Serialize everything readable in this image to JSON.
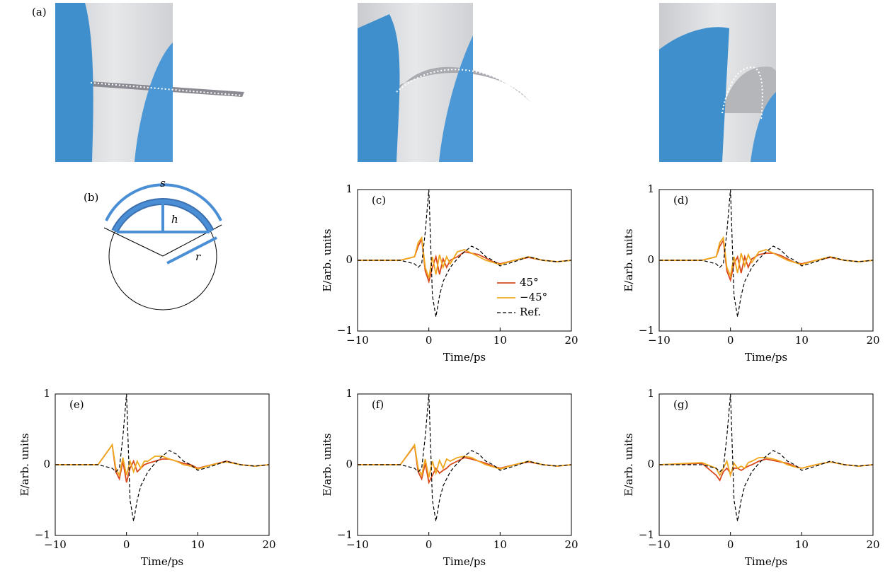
{
  "panels": {
    "a": "(a)",
    "b": "(b)"
  },
  "diagram": {
    "s": "s",
    "h": "h",
    "r": "r"
  },
  "chart_data": [
    {
      "type": "line",
      "label": "(c)",
      "xlabel": "Time/ps",
      "ylabel": "E/arb. units",
      "x": [
        -10,
        -4,
        -2,
        -1.5,
        -1,
        -0.5,
        0,
        0.5,
        1,
        1.5,
        2,
        2.5,
        3,
        4,
        5,
        6,
        7,
        8,
        9,
        10,
        12,
        14,
        16,
        18,
        20
      ],
      "xlim": [
        -10,
        20
      ],
      "ylim": [
        -1,
        1
      ],
      "xticks": [
        {
          "value": -10,
          "label": "−10"
        },
        0,
        10,
        20
      ],
      "yticks": [
        {
          "value": -1,
          "label": "−1"
        },
        0,
        1
      ],
      "legend": "lower right",
      "series": [
        {
          "name": "45°",
          "color": "#d9481c",
          "values": [
            0,
            0,
            0.05,
            0.2,
            0.3,
            -0.15,
            -0.3,
            -0.1,
            0.05,
            -0.2,
            0.02,
            -0.1,
            0,
            0.05,
            0.12,
            0.1,
            0.08,
            0.03,
            -0.02,
            -0.05,
            0,
            0.04,
            0,
            -0.02,
            0
          ]
        },
        {
          "name": "−45°",
          "color": "#f0a81e",
          "values": [
            0,
            0,
            0.05,
            0.25,
            0.32,
            -0.1,
            -0.25,
            0.05,
            -0.2,
            0.08,
            -0.1,
            0.05,
            -0.05,
            0.12,
            0.15,
            0.1,
            0.05,
            0,
            -0.03,
            -0.06,
            0,
            0.05,
            0,
            -0.02,
            0
          ]
        },
        {
          "name": "Ref.",
          "color": "#000000",
          "dash": true,
          "values": [
            0,
            0,
            -0.05,
            -0.1,
            -0.05,
            0.4,
            1,
            -0.5,
            -0.8,
            -0.5,
            -0.3,
            -0.2,
            -0.1,
            0.02,
            0.12,
            0.2,
            0.15,
            0.05,
            0,
            -0.08,
            -0.02,
            0.05,
            0,
            -0.02,
            0
          ]
        }
      ]
    },
    {
      "type": "line",
      "label": "(d)",
      "xlabel": "Time/ps",
      "ylabel": "E/arb. units",
      "x": [
        -10,
        -4,
        -2,
        -1.5,
        -1,
        -0.5,
        0,
        0.5,
        1,
        1.5,
        2,
        2.5,
        3,
        4,
        5,
        6,
        7,
        8,
        9,
        10,
        12,
        14,
        16,
        18,
        20
      ],
      "xlim": [
        -10,
        20
      ],
      "ylim": [
        -1,
        1
      ],
      "xticks": [
        {
          "value": -10,
          "label": "−10"
        },
        0,
        10,
        20
      ],
      "yticks": [
        {
          "value": -1,
          "label": "−1"
        },
        0,
        1
      ],
      "series": [
        {
          "color": "#d9481c",
          "values": [
            0,
            0,
            0.05,
            0.2,
            0.28,
            -0.15,
            -0.28,
            -0.05,
            0.05,
            -0.18,
            0.05,
            -0.1,
            0.02,
            0.08,
            0.1,
            0.1,
            0.07,
            0.02,
            -0.03,
            -0.05,
            0,
            0.04,
            0,
            -0.02,
            0
          ]
        },
        {
          "color": "#f0a81e",
          "values": [
            0,
            0,
            0.05,
            0.25,
            0.32,
            -0.1,
            -0.22,
            0.05,
            -0.18,
            0.1,
            -0.08,
            0.08,
            -0.03,
            0.12,
            0.15,
            0.1,
            0.05,
            0,
            -0.03,
            -0.06,
            0,
            0.05,
            0,
            -0.02,
            0
          ]
        },
        {
          "color": "#000000",
          "dash": true,
          "values": [
            0,
            0,
            -0.05,
            -0.1,
            -0.05,
            0.4,
            1,
            -0.5,
            -0.8,
            -0.5,
            -0.3,
            -0.2,
            -0.1,
            0.02,
            0.12,
            0.2,
            0.15,
            0.05,
            0,
            -0.08,
            -0.02,
            0.05,
            0,
            -0.02,
            0
          ]
        }
      ]
    },
    {
      "type": "line",
      "label": "(e)",
      "xlabel": "Time/ps",
      "ylabel": "E/arb. units",
      "x": [
        -10,
        -4,
        -2,
        -1.5,
        -1,
        -0.5,
        0,
        0.5,
        1,
        1.5,
        2,
        2.5,
        3,
        4,
        5,
        6,
        7,
        8,
        9,
        10,
        12,
        14,
        16,
        18,
        20
      ],
      "xlim": [
        -10,
        20
      ],
      "ylim": [
        -1,
        1
      ],
      "xticks": [
        {
          "value": -10,
          "label": "−10"
        },
        0,
        10,
        20
      ],
      "yticks": [
        {
          "value": -1,
          "label": "−1"
        },
        0,
        1
      ],
      "series": [
        {
          "color": "#d9481c",
          "values": [
            0,
            0,
            0.28,
            -0.1,
            -0.2,
            0.05,
            -0.25,
            -0.05,
            0.05,
            -0.1,
            -0.05,
            0,
            0.02,
            0.05,
            0.08,
            0.08,
            0.05,
            0.02,
            0,
            -0.05,
            0,
            0.05,
            0,
            -0.02,
            0
          ]
        },
        {
          "color": "#f0a81e",
          "values": [
            0,
            0,
            0.28,
            -0.05,
            -0.15,
            0.1,
            -0.15,
            0.05,
            -0.1,
            0.05,
            -0.05,
            0.05,
            0.05,
            0.12,
            0.12,
            0.08,
            0.05,
            0,
            -0.02,
            -0.06,
            0,
            0.04,
            0,
            -0.02,
            0
          ]
        },
        {
          "color": "#000000",
          "dash": true,
          "values": [
            0,
            0,
            -0.05,
            -0.1,
            -0.05,
            0.4,
            1,
            -0.5,
            -0.8,
            -0.5,
            -0.3,
            -0.2,
            -0.1,
            0.02,
            0.12,
            0.2,
            0.15,
            0.05,
            0,
            -0.08,
            -0.02,
            0.05,
            0,
            -0.02,
            0
          ]
        }
      ]
    },
    {
      "type": "line",
      "label": "(f)",
      "xlabel": "Time/ps",
      "ylabel": "E/arb. units",
      "x": [
        -10,
        -4,
        -2,
        -1.5,
        -1,
        -0.5,
        0,
        0.5,
        1,
        1.5,
        2,
        2.5,
        3,
        4,
        5,
        6,
        7,
        8,
        9,
        10,
        12,
        14,
        16,
        18,
        20
      ],
      "xlim": [
        -10,
        20
      ],
      "ylim": [
        -1,
        1
      ],
      "xticks": [
        {
          "value": -10,
          "label": "−10"
        },
        0,
        10,
        20
      ],
      "yticks": [
        {
          "value": -1,
          "label": "−1"
        },
        0,
        1
      ],
      "series": [
        {
          "color": "#d9481c",
          "values": [
            0,
            0,
            0.27,
            -0.1,
            -0.2,
            0.02,
            -0.25,
            -0.15,
            -0.05,
            -0.12,
            -0.08,
            -0.05,
            0,
            0.05,
            0.1,
            0.08,
            0.05,
            0.02,
            -0.02,
            -0.05,
            0,
            0.04,
            0,
            -0.02,
            0
          ]
        },
        {
          "color": "#f0a81e",
          "values": [
            0,
            0,
            0.28,
            -0.05,
            -0.15,
            0.08,
            -0.18,
            0.05,
            -0.12,
            0.06,
            -0.05,
            0.08,
            0.05,
            0.1,
            0.12,
            0.1,
            0.05,
            0,
            -0.03,
            -0.06,
            0,
            0.05,
            0,
            -0.02,
            0
          ]
        },
        {
          "color": "#000000",
          "dash": true,
          "values": [
            0,
            0,
            -0.05,
            -0.1,
            -0.05,
            0.4,
            1,
            -0.5,
            -0.8,
            -0.5,
            -0.3,
            -0.2,
            -0.1,
            0.02,
            0.12,
            0.2,
            0.15,
            0.05,
            0,
            -0.08,
            -0.02,
            0.05,
            0,
            -0.02,
            0
          ]
        }
      ]
    },
    {
      "type": "line",
      "label": "(g)",
      "xlabel": "Time/ps",
      "ylabel": "E/arb. units",
      "x": [
        -10,
        -4,
        -2,
        -1.5,
        -1,
        -0.5,
        0,
        0.5,
        1,
        1.5,
        2,
        2.5,
        3,
        4,
        5,
        6,
        7,
        8,
        9,
        10,
        12,
        14,
        16,
        18,
        20
      ],
      "xlim": [
        -10,
        20
      ],
      "ylim": [
        -1,
        1
      ],
      "xticks": [
        {
          "value": -10,
          "label": "−10"
        },
        0,
        10,
        20
      ],
      "yticks": [
        {
          "value": -1,
          "label": "−1"
        },
        0,
        1
      ],
      "series": [
        {
          "color": "#d9481c",
          "values": [
            0,
            0.02,
            -0.15,
            -0.22,
            -0.1,
            -0.05,
            -0.12,
            -0.05,
            -0.05,
            -0.08,
            -0.05,
            -0.02,
            0,
            0.05,
            0.08,
            0.06,
            0.04,
            0.02,
            -0.02,
            -0.05,
            0,
            0.04,
            0,
            -0.02,
            0
          ]
        },
        {
          "color": "#f0a81e",
          "values": [
            0,
            0.03,
            -0.05,
            -0.15,
            -0.05,
            0.05,
            -0.15,
            0.02,
            -0.05,
            -0.02,
            -0.05,
            0.03,
            0.05,
            0.1,
            0.1,
            0.08,
            0.05,
            0,
            -0.03,
            -0.05,
            0,
            0.04,
            0,
            -0.02,
            0
          ]
        },
        {
          "color": "#000000",
          "dash": true,
          "values": [
            0,
            0,
            -0.05,
            -0.1,
            -0.05,
            0.4,
            1,
            -0.5,
            -0.8,
            -0.5,
            -0.3,
            -0.2,
            -0.1,
            0.02,
            0.12,
            0.2,
            0.15,
            0.05,
            0,
            -0.08,
            -0.02,
            0.05,
            0,
            -0.02,
            0
          ]
        }
      ]
    }
  ]
}
